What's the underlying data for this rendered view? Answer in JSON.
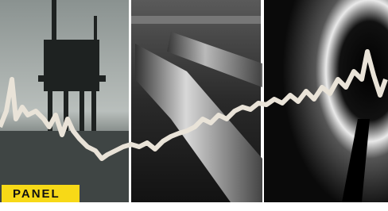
{
  "label": "PANEL"
}
